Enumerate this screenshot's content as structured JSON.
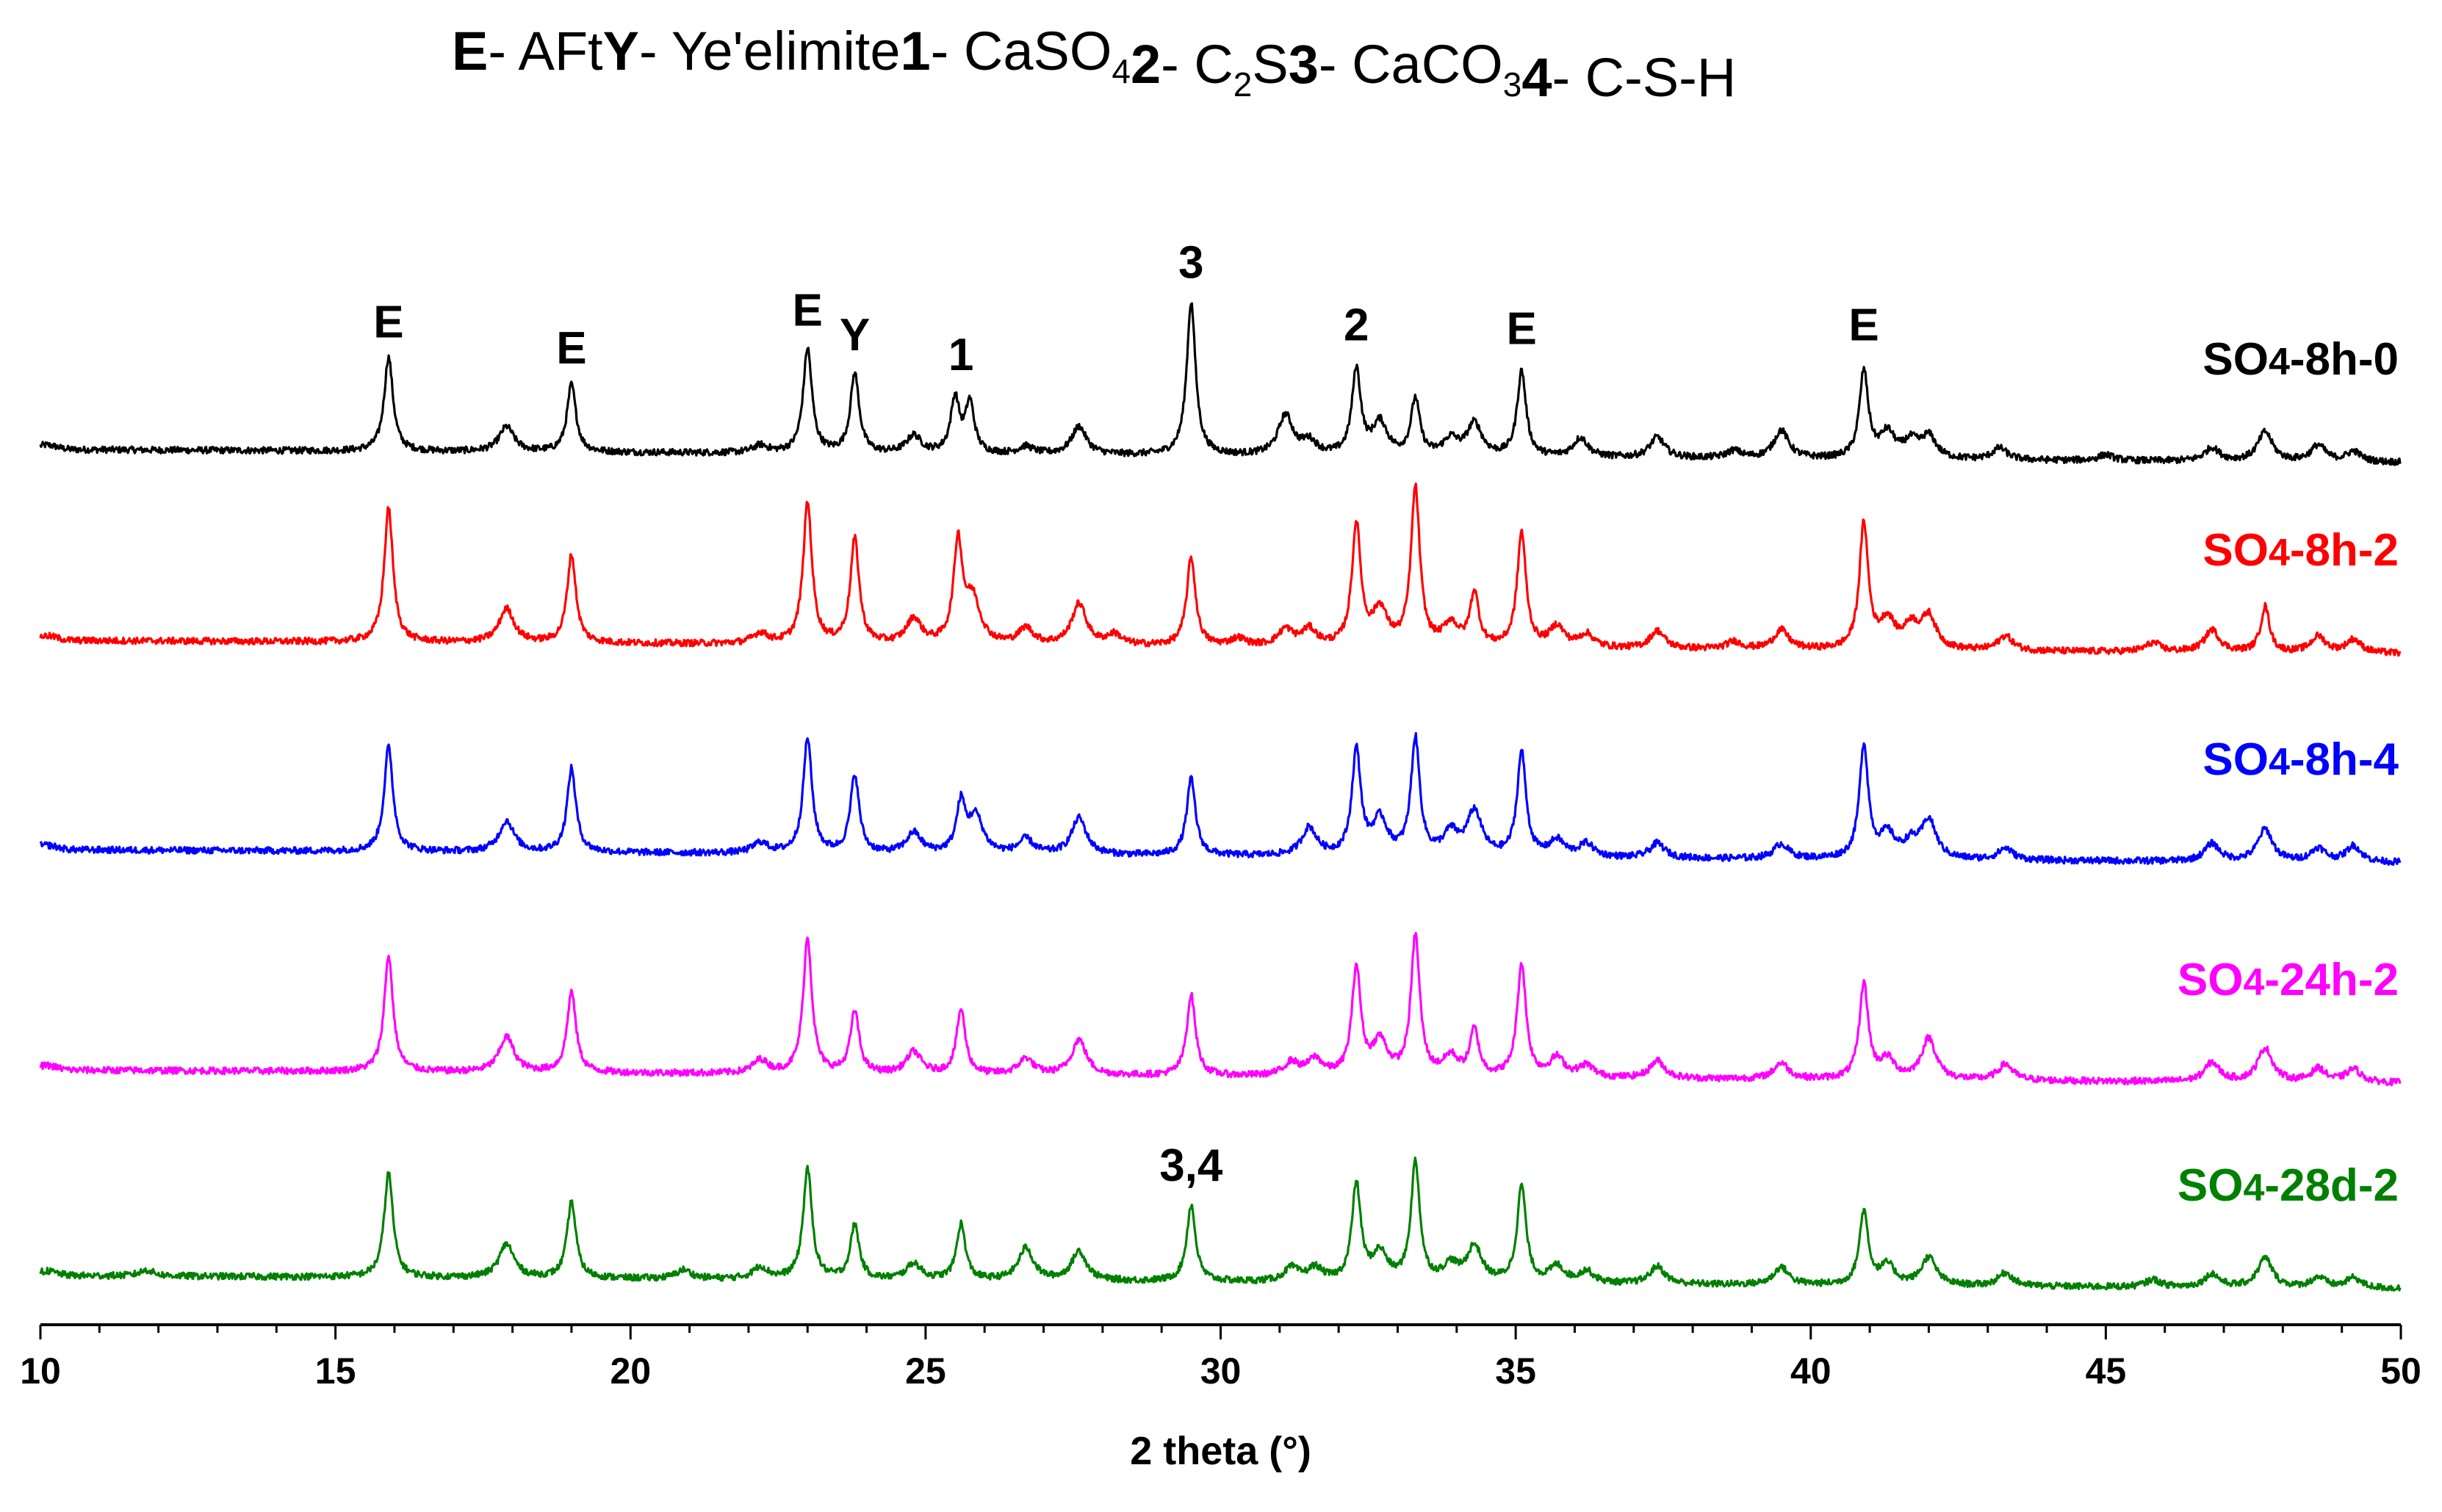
{
  "chart_data": {
    "type": "line",
    "xlabel": "2 theta (°)",
    "ylabel": "",
    "xlim": [
      10,
      50
    ],
    "xticks": [
      10,
      15,
      20,
      25,
      30,
      35,
      40,
      45,
      50
    ],
    "xtick_labels": [
      "10",
      "15",
      "20",
      "25",
      "30",
      "35",
      "40",
      "45",
      "50"
    ],
    "legend": [
      {
        "key": "E",
        "text": "- AFt"
      },
      {
        "key": "Y",
        "text": "- Ye'elimite"
      },
      {
        "key": "1",
        "text": "- CaSO",
        "sub": "4"
      },
      {
        "key": "2",
        "text": "- C",
        "sub": "2",
        "tail": "S"
      },
      {
        "key": "3",
        "text": "- CaCO",
        "sub": "3"
      },
      {
        "key": "4",
        "text": "- C-S-H"
      }
    ],
    "annotations": [
      {
        "text": "E",
        "x": 15.9,
        "series": 0
      },
      {
        "text": "E",
        "x": 19.0,
        "series": 0
      },
      {
        "text": "E",
        "x": 23.0,
        "series": 0
      },
      {
        "text": "Y",
        "x": 23.8,
        "series": 0
      },
      {
        "text": "1",
        "x": 25.6,
        "series": 0
      },
      {
        "text": "3",
        "x": 29.5,
        "series": 0
      },
      {
        "text": "2",
        "x": 32.3,
        "series": 0
      },
      {
        "text": "E",
        "x": 35.1,
        "series": 0
      },
      {
        "text": "E",
        "x": 40.9,
        "series": 0
      },
      {
        "text": "3,4",
        "x": 29.5,
        "series": 4
      }
    ],
    "peak_widths": {
      "sharp": 0.09,
      "broad": 0.15
    },
    "series": [
      {
        "name": "SO",
        "sub": "4",
        "suffix": "-8h-0",
        "color": "#000000",
        "baseline": 0,
        "peaks": [
          [
            15.9,
            128
          ],
          [
            17.9,
            34
          ],
          [
            19.0,
            92
          ],
          [
            22.2,
            10
          ],
          [
            23.0,
            142
          ],
          [
            23.8,
            108
          ],
          [
            24.8,
            24
          ],
          [
            25.5,
            74
          ],
          [
            25.75,
            68
          ],
          [
            26.7,
            10
          ],
          [
            27.6,
            38
          ],
          [
            29.5,
            208
          ],
          [
            31.1,
            54
          ],
          [
            31.5,
            18
          ],
          [
            32.3,
            116
          ],
          [
            32.7,
            44
          ],
          [
            33.3,
            76
          ],
          [
            33.9,
            22
          ],
          [
            34.3,
            44
          ],
          [
            35.1,
            116
          ],
          [
            36.1,
            26
          ],
          [
            37.4,
            28
          ],
          [
            38.7,
            10
          ],
          [
            39.5,
            38
          ],
          [
            40.9,
            118
          ],
          [
            41.3,
            34
          ],
          [
            41.7,
            22
          ],
          [
            42.0,
            30
          ],
          [
            43.2,
            16
          ],
          [
            45.0,
            8
          ],
          [
            46.8,
            18
          ],
          [
            47.7,
            40
          ],
          [
            48.6,
            22
          ],
          [
            49.2,
            14
          ]
        ]
      },
      {
        "name": "SO",
        "sub": "4",
        "suffix": "-8h-2",
        "color": "#ff0000",
        "baseline": 1,
        "peaks": [
          [
            15.9,
            182
          ],
          [
            17.9,
            46
          ],
          [
            19.0,
            120
          ],
          [
            22.2,
            14
          ],
          [
            23.0,
            192
          ],
          [
            23.8,
            142
          ],
          [
            24.8,
            34
          ],
          [
            25.55,
            136
          ],
          [
            25.8,
            60
          ],
          [
            26.7,
            22
          ],
          [
            27.6,
            56
          ],
          [
            28.2,
            14
          ],
          [
            29.5,
            120
          ],
          [
            30.3,
            10
          ],
          [
            31.1,
            22
          ],
          [
            31.5,
            22
          ],
          [
            32.3,
            164
          ],
          [
            32.7,
            48
          ],
          [
            33.3,
            214
          ],
          [
            33.9,
            30
          ],
          [
            34.3,
            72
          ],
          [
            35.1,
            156
          ],
          [
            35.7,
            28
          ],
          [
            36.2,
            18
          ],
          [
            37.4,
            24
          ],
          [
            38.7,
            10
          ],
          [
            39.5,
            26
          ],
          [
            40.9,
            170
          ],
          [
            41.3,
            38
          ],
          [
            41.7,
            30
          ],
          [
            42.0,
            44
          ],
          [
            43.3,
            20
          ],
          [
            45.8,
            12
          ],
          [
            46.8,
            30
          ],
          [
            47.7,
            62
          ],
          [
            48.6,
            22
          ],
          [
            49.2,
            18
          ]
        ]
      },
      {
        "name": "SO",
        "sub": "4",
        "suffix": "-8h-4",
        "color": "#0000ff",
        "baseline": 2,
        "peaks": [
          [
            15.9,
            142
          ],
          [
            17.9,
            42
          ],
          [
            19.0,
            114
          ],
          [
            22.2,
            14
          ],
          [
            23.0,
            156
          ],
          [
            23.8,
            106
          ],
          [
            24.8,
            28
          ],
          [
            25.6,
            66
          ],
          [
            25.85,
            50
          ],
          [
            26.7,
            20
          ],
          [
            27.6,
            50
          ],
          [
            29.5,
            104
          ],
          [
            31.5,
            38
          ],
          [
            32.3,
            142
          ],
          [
            32.7,
            48
          ],
          [
            33.3,
            158
          ],
          [
            33.9,
            30
          ],
          [
            34.3,
            60
          ],
          [
            35.1,
            142
          ],
          [
            35.7,
            22
          ],
          [
            36.2,
            18
          ],
          [
            37.4,
            20
          ],
          [
            39.5,
            20
          ],
          [
            40.9,
            154
          ],
          [
            41.3,
            32
          ],
          [
            41.7,
            20
          ],
          [
            42.0,
            52
          ],
          [
            43.3,
            16
          ],
          [
            46.8,
            24
          ],
          [
            47.7,
            44
          ],
          [
            48.6,
            18
          ],
          [
            49.2,
            22
          ]
        ]
      },
      {
        "name": "SO",
        "sub": "4",
        "suffix": "-24h-2",
        "color": "#ff00ff",
        "baseline": 3,
        "peaks": [
          [
            15.9,
            158
          ],
          [
            17.9,
            48
          ],
          [
            19.0,
            110
          ],
          [
            22.2,
            18
          ],
          [
            23.0,
            184
          ],
          [
            23.8,
            84
          ],
          [
            24.8,
            30
          ],
          [
            25.6,
            88
          ],
          [
            26.7,
            22
          ],
          [
            27.6,
            48
          ],
          [
            29.5,
            110
          ],
          [
            31.2,
            18
          ],
          [
            31.6,
            22
          ],
          [
            32.3,
            146
          ],
          [
            32.7,
            46
          ],
          [
            33.3,
            190
          ],
          [
            33.9,
            26
          ],
          [
            34.3,
            62
          ],
          [
            35.1,
            154
          ],
          [
            35.7,
            26
          ],
          [
            36.2,
            16
          ],
          [
            37.4,
            24
          ],
          [
            39.5,
            22
          ],
          [
            40.9,
            130
          ],
          [
            41.3,
            26
          ],
          [
            42.0,
            56
          ],
          [
            43.3,
            22
          ],
          [
            46.8,
            26
          ],
          [
            47.7,
            46
          ],
          [
            48.6,
            18
          ],
          [
            49.2,
            18
          ]
        ]
      },
      {
        "name": "SO",
        "sub": "4",
        "suffix": "-28d-2",
        "color": "#008000",
        "baseline": 4,
        "peaks": [
          [
            11.8,
            8
          ],
          [
            15.9,
            142
          ],
          [
            17.9,
            46
          ],
          [
            19.0,
            104
          ],
          [
            20.9,
            12
          ],
          [
            22.2,
            16
          ],
          [
            23.0,
            150
          ],
          [
            23.8,
            74
          ],
          [
            24.8,
            22
          ],
          [
            25.6,
            76
          ],
          [
            26.7,
            44
          ],
          [
            27.6,
            40
          ],
          [
            29.5,
            104
          ],
          [
            31.2,
            18
          ],
          [
            31.6,
            18
          ],
          [
            32.3,
            132
          ],
          [
            32.7,
            38
          ],
          [
            33.3,
            162
          ],
          [
            33.9,
            22
          ],
          [
            34.3,
            48
          ],
          [
            35.1,
            132
          ],
          [
            35.7,
            22
          ],
          [
            36.2,
            16
          ],
          [
            37.4,
            24
          ],
          [
            39.5,
            24
          ],
          [
            40.9,
            100
          ],
          [
            41.3,
            26
          ],
          [
            42.0,
            38
          ],
          [
            43.3,
            18
          ],
          [
            45.8,
            10
          ],
          [
            46.8,
            18
          ],
          [
            47.7,
            40
          ],
          [
            48.6,
            14
          ],
          [
            49.2,
            14
          ]
        ]
      }
    ]
  }
}
